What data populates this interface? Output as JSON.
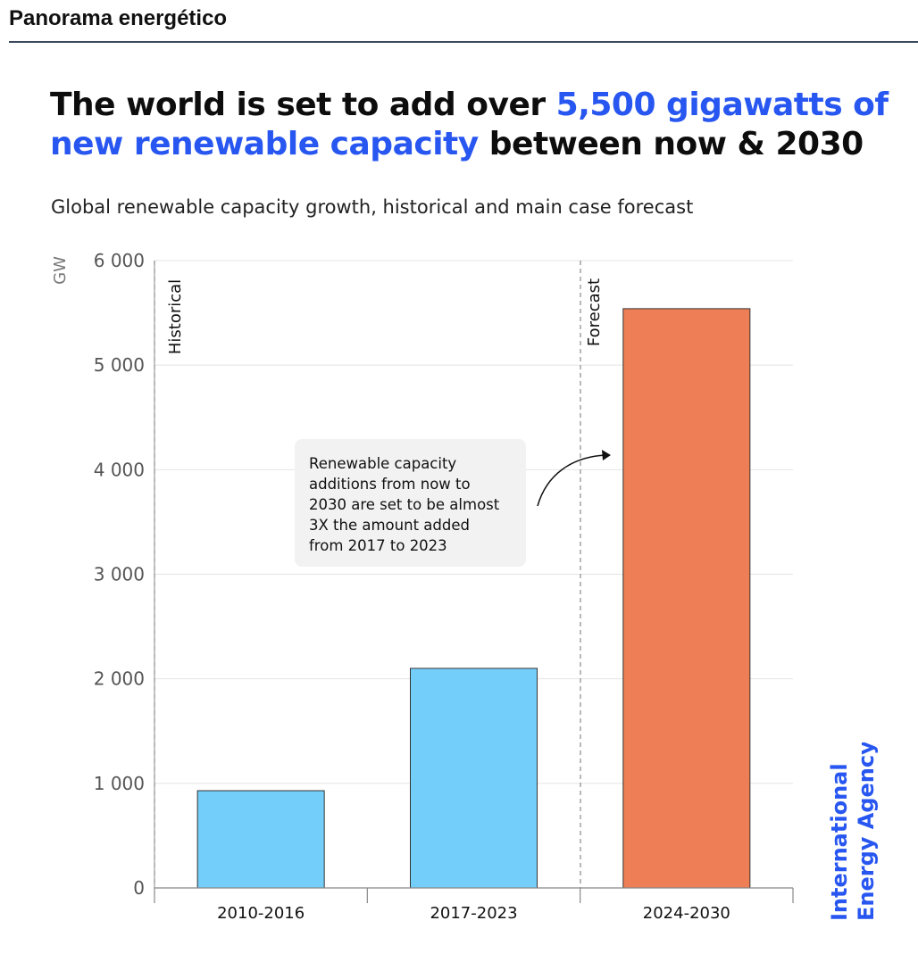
{
  "header": {
    "title": "Panorama energético"
  },
  "headline": {
    "part1": "The world is set to add over ",
    "highlight": "5,500 gigawatts of new renewable capacity",
    "part2": " between now & 2030"
  },
  "subtitle": "Global renewable capacity growth, historical and main case forecast",
  "colors": {
    "accent": "#2756f0",
    "historical_bar": "#73cefa",
    "forecast_bar": "#ee7e55"
  },
  "logo": {
    "line1": "International",
    "line2": "Energy Agency"
  },
  "chart_data": {
    "type": "bar",
    "categories": [
      "2010-2016",
      "2017-2023",
      "2024-2030"
    ],
    "values": [
      930,
      2100,
      5540
    ],
    "bar_colors": [
      "#73cefa",
      "#73cefa",
      "#ee7e55"
    ],
    "ylabel": "GW",
    "ylim": [
      0,
      6000
    ],
    "yticks": [
      0,
      1000,
      2000,
      3000,
      4000,
      5000,
      6000
    ],
    "ytick_labels": [
      "0",
      "1 000",
      "2 000",
      "3 000",
      "4 000",
      "5 000",
      "6 000"
    ],
    "grid": true,
    "period_labels": [
      "Historical",
      "Forecast"
    ],
    "annotation": {
      "lines": [
        "Renewable capacity",
        "additions from now to",
        "2030 are set to be almost",
        "3X the amount added",
        "from 2017 to 2023"
      ]
    }
  }
}
